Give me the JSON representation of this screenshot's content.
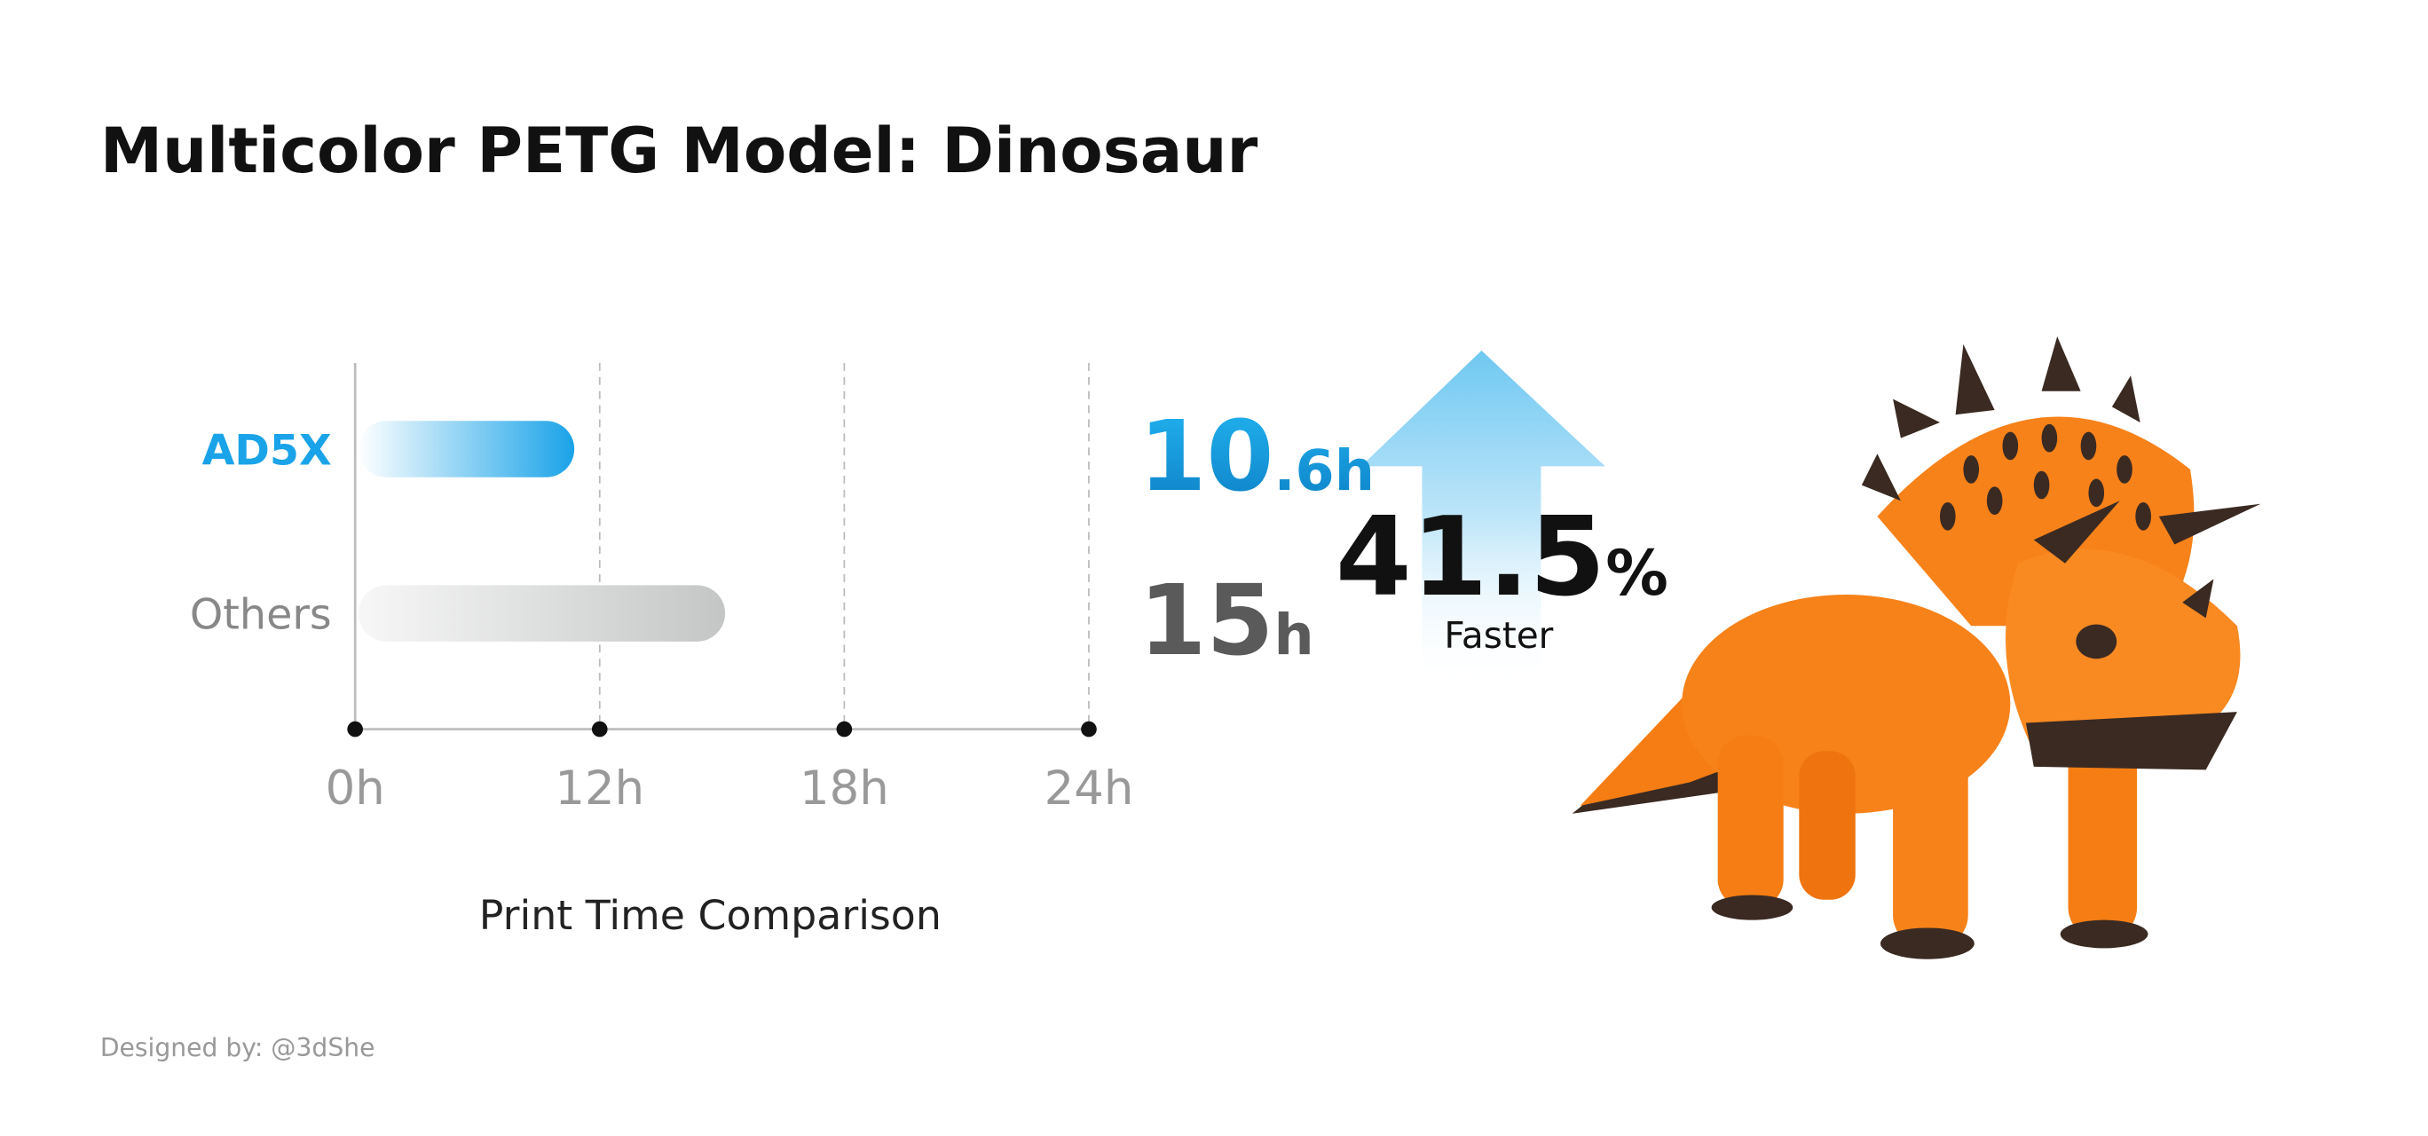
{
  "chart_data": {
    "type": "bar",
    "title": "Multicolor PETG Model: Dinosaur",
    "x_label": "Print Time Comparison",
    "categories": [
      "AD5X",
      "Others"
    ],
    "values": [
      10.6,
      15
    ],
    "value_labels": [
      "10.6h",
      "15h"
    ],
    "colors": [
      "#1aa3e8",
      "#c4c6c6"
    ],
    "label_colors": [
      "#1aa3e8",
      "#5a5a5a"
    ],
    "xlim": [
      0,
      24
    ],
    "xticks": [
      {
        "value": 0,
        "label": "0h"
      },
      {
        "value": 12,
        "label": "12h"
      },
      {
        "value": 18,
        "label": "18h"
      },
      {
        "value": 24,
        "label": "24h"
      }
    ],
    "grid": true,
    "highlight": "41.5%",
    "highlight_caption": "Faster"
  },
  "footer": "Designed by: @3dShe"
}
